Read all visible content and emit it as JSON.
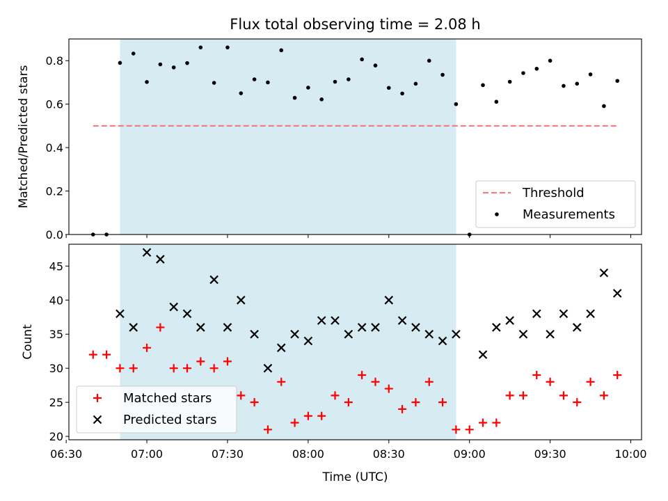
{
  "chart_data": [
    {
      "type": "scatter",
      "title": "Flux total observing time = 2.08 h",
      "xlabel": "",
      "ylabel": "Matched/Predicted stars",
      "xlim": [
        "06:31",
        "10:04"
      ],
      "ylim": [
        0,
        0.9
      ],
      "y_ticks": [
        "0.0",
        "0.2",
        "0.4",
        "0.6",
        "0.8"
      ],
      "x_ticks_shown": false,
      "shaded_interval": {
        "start": "06:50",
        "end": "08:55",
        "color": "#add8e6"
      },
      "legend_position": "lower right",
      "series": [
        {
          "name": "Threshold",
          "style": "dashed-line",
          "color": "#f08080",
          "x": [
            "06:40",
            "09:55"
          ],
          "y": [
            0.5,
            0.5
          ]
        },
        {
          "name": "Measurements",
          "style": "dot",
          "color": "#000000",
          "x": [
            "06:40",
            "06:45",
            "06:50",
            "06:55",
            "07:00",
            "07:05",
            "07:10",
            "07:15",
            "07:20",
            "07:25",
            "07:30",
            "07:35",
            "07:40",
            "07:45",
            "07:50",
            "07:55",
            "08:00",
            "08:05",
            "08:10",
            "08:15",
            "08:20",
            "08:25",
            "08:30",
            "08:35",
            "08:40",
            "08:45",
            "08:50",
            "08:55",
            "09:00",
            "09:05",
            "09:10",
            "09:15",
            "09:20",
            "09:25",
            "09:30",
            "09:35",
            "09:40",
            "09:45",
            "09:50",
            "09:55"
          ],
          "y": [
            0.0,
            0.0,
            0.79,
            0.833,
            0.702,
            0.783,
            0.769,
            0.789,
            0.861,
            0.698,
            0.861,
            0.65,
            0.714,
            0.7,
            0.848,
            0.629,
            0.676,
            0.622,
            0.703,
            0.714,
            0.806,
            0.778,
            0.675,
            0.649,
            0.694,
            0.8,
            0.735,
            0.6,
            0.0,
            0.6875,
            0.611,
            0.703,
            0.743,
            0.763,
            0.8,
            0.684,
            0.694,
            0.737,
            0.591,
            0.707
          ]
        }
      ]
    },
    {
      "type": "scatter",
      "title": "",
      "xlabel": "Time (UTC)",
      "ylabel": "Count",
      "xlim": [
        "06:31",
        "10:04"
      ],
      "ylim": [
        19.5,
        48.2
      ],
      "x_ticks": [
        "06:30",
        "07:00",
        "07:30",
        "08:00",
        "08:30",
        "09:00",
        "09:30",
        "10:00"
      ],
      "y_ticks": [
        "20",
        "25",
        "30",
        "35",
        "40",
        "45"
      ],
      "shaded_interval": {
        "start": "06:50",
        "end": "08:55",
        "color": "#add8e6"
      },
      "legend_position": "lower left",
      "series": [
        {
          "name": "Matched stars",
          "marker": "plus",
          "color": "#ff0000",
          "x": [
            "06:40",
            "06:45",
            "06:50",
            "06:55",
            "07:00",
            "07:05",
            "07:10",
            "07:15",
            "07:20",
            "07:25",
            "07:30",
            "07:35",
            "07:40",
            "07:45",
            "07:50",
            "07:55",
            "08:00",
            "08:05",
            "08:10",
            "08:15",
            "08:20",
            "08:25",
            "08:30",
            "08:35",
            "08:40",
            "08:45",
            "08:50",
            "08:55",
            "09:00",
            "09:05",
            "09:10",
            "09:15",
            "09:20",
            "09:25",
            "09:30",
            "09:35",
            "09:40",
            "09:45",
            "09:50",
            "09:55"
          ],
          "y": [
            32,
            32,
            30,
            30,
            33,
            36,
            30,
            30,
            31,
            30,
            31,
            26,
            25,
            21,
            28,
            22,
            23,
            23,
            26,
            25,
            29,
            28,
            27,
            24,
            25,
            28,
            25,
            21,
            21,
            22,
            22,
            26,
            26,
            29,
            28,
            26,
            25,
            28,
            26,
            29
          ]
        },
        {
          "name": "Predicted stars",
          "marker": "x",
          "color": "#000000",
          "x": [
            "06:50",
            "06:55",
            "07:00",
            "07:05",
            "07:10",
            "07:15",
            "07:20",
            "07:25",
            "07:30",
            "07:35",
            "07:40",
            "07:45",
            "07:50",
            "07:55",
            "08:00",
            "08:05",
            "08:10",
            "08:15",
            "08:20",
            "08:25",
            "08:30",
            "08:35",
            "08:40",
            "08:45",
            "08:50",
            "08:55",
            "09:05",
            "09:10",
            "09:15",
            "09:20",
            "09:25",
            "09:30",
            "09:35",
            "09:40",
            "09:45",
            "09:50",
            "09:55"
          ],
          "y": [
            38,
            36,
            47,
            46,
            39,
            38,
            36,
            43,
            36,
            40,
            35,
            30,
            33,
            35,
            34,
            37,
            37,
            35,
            36,
            36,
            40,
            37,
            36,
            35,
            34,
            35,
            32,
            36,
            37,
            35,
            38,
            35,
            38,
            36,
            38,
            44,
            41
          ]
        }
      ]
    }
  ]
}
